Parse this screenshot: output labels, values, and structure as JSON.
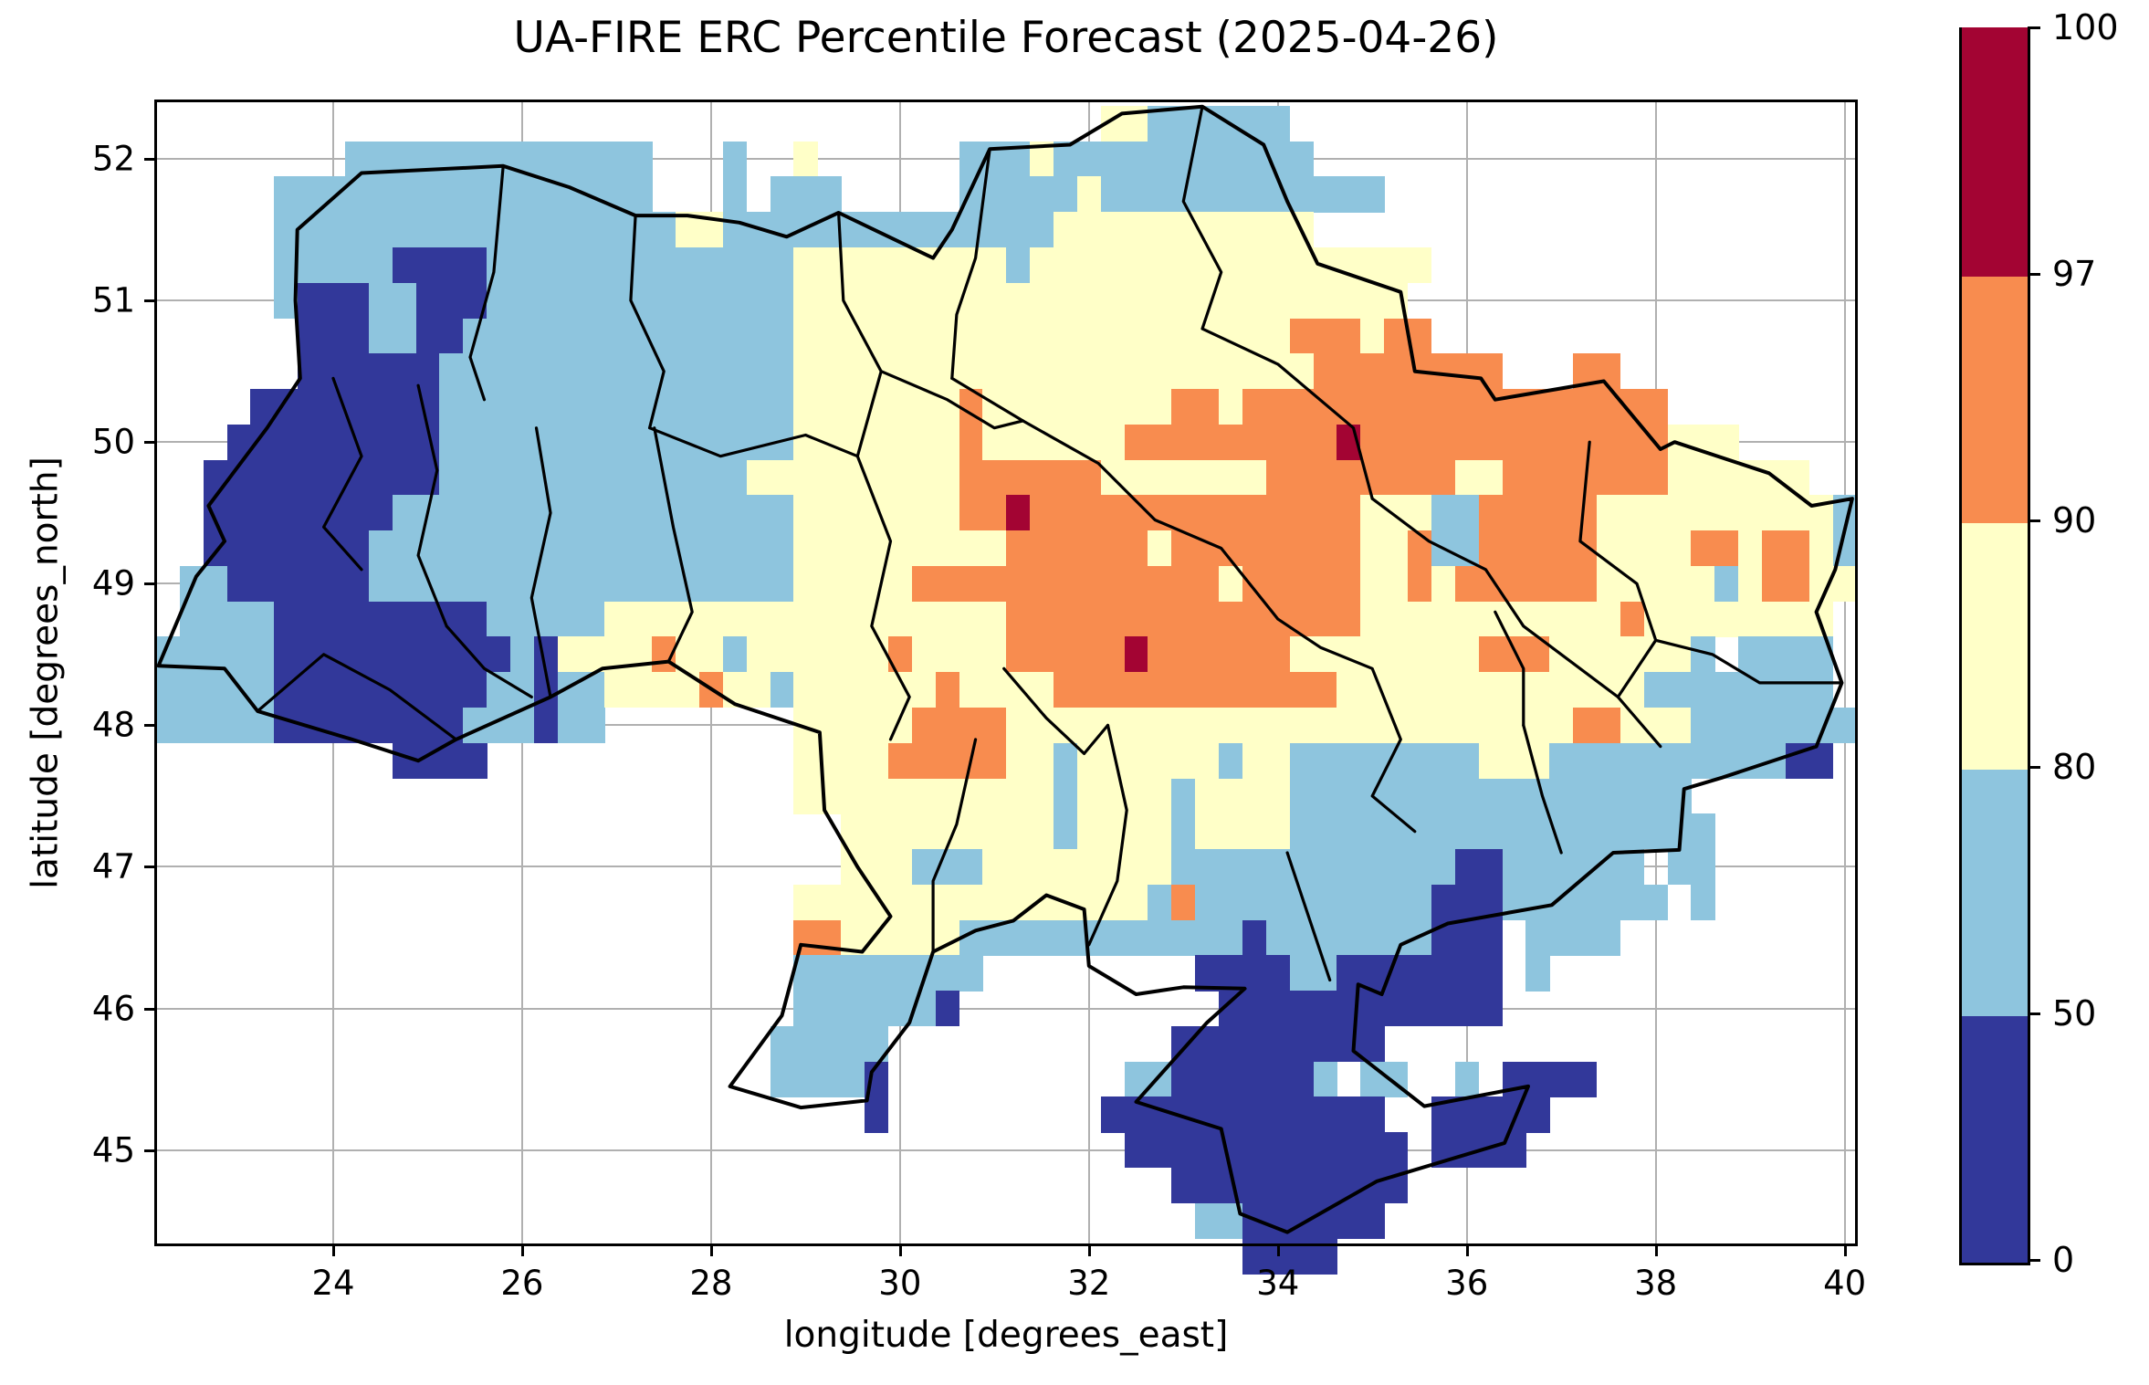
{
  "figure": {
    "title": "UA-FIRE ERC Percentile Forecast (2025-04-26)",
    "xlabel": "longitude [degrees_east]",
    "ylabel": "latitude [degrees_north]"
  },
  "chart_data": {
    "type": "heatmap",
    "title": "UA-FIRE ERC Percentile Forecast (2025-04-26)",
    "xlabel": "longitude [degrees_east]",
    "ylabel": "latitude [degrees_north]",
    "xlim": [
      22.135,
      40.11
    ],
    "ylim": [
      44.34,
      52.4
    ],
    "x_ticks": [
      24,
      26,
      28,
      30,
      32,
      34,
      36,
      38,
      40
    ],
    "y_ticks": [
      45,
      46,
      47,
      48,
      49,
      50,
      51,
      52
    ],
    "grid_on": true,
    "grid_color": "#b0b0b0",
    "colorbar": {
      "levels": [
        0,
        50,
        80,
        90,
        97,
        100
      ],
      "tick_labels": [
        "0",
        "50",
        "80",
        "90",
        "97",
        "100"
      ],
      "colors": [
        "#32389a",
        "#8ec5de",
        "#ffffc8",
        "#f88c4f",
        "#a30433"
      ],
      "meaning": [
        "0-50",
        "50-80",
        "80-90",
        "90-97",
        "97-100"
      ]
    },
    "value_classes": {
      "1": "0-50",
      "2": "50-80",
      "3": "80-90",
      "4": "90-97",
      "5": "97-100"
    },
    "cell_deg": 0.25,
    "grid_origin_lon": 22.125,
    "grid_origin_lat": 52.375,
    "grid_rows": [
      "........................................33222222........................",
      "........2222222222222...2..3......222322222222222.......................",
      ".....2222222222222222...2.222.....222223222222222222....................",
      ".....22222222222222222332222222222222233333333333.......................",
      ".....2222211112222222222222333333333233333333333333333..................",
      ".....211122111222222222222233333333333333333333333333...................",
      "......111221122222222222222333333333333333333333444344..................",
      "......111111222222222222222333333333333333333333344444444...44..........",
      "....111111112222222222222223333333433333333443444444444444444444........",
      "...1111111112222222222222223333333433333344444444454444444444444333.....",
      "..11111111112222222222222333333333444444333333344444444334444444333333..",
      "..1111111122222222222222222333333344544444444444444333224444433333333332",
      "..1111111222222222222222222333333333444444344444444334224444433334434432",
      ".22111111222222222222222222333334444444444444344444334344444433333234433",
      ".2222111111111222223333333333333333344444444444444433333333333433333333.2",
      "222221111111111213333433233333343333444445444444333333334443333332 2222",
      "22222111111111221223333433233333343333444444444444333333333333322222222.",
      "2222211111111222122........333334444333333333333333333333333443332222222.",
      "..........1111.............33334444433233333323322222222333222222222211.",
      "...........................33333333333233332333322222222222222222.......",
      ".............................3333333332333323333222222222222222222......",
      ".............................3332223333333322222222222211222222 22......",
      "...........................3333333333333332422222222221112222222 2......",
      "...........................443333322222222222212222222111 2222..........",
      "...........................22222222.........1111221111111 2..............",
      "...........................2222221...........111111111111...............",
      "..........................22222............111111111....................",
      "..........................22221..........221111112 22..2 1111.............",
      "..............................1.........111111111111..11111.............",
      ".........................................111111111111.1111..............",
      "...........................................1111111111...................",
      "............................................22111111....................",
      "..............................................1111......................"
    ],
    "outline": [
      [
        22.85,
        49.3
      ],
      [
        22.68,
        49.55
      ],
      [
        23.3,
        50.1
      ],
      [
        23.65,
        50.45
      ],
      [
        23.6,
        51.0
      ],
      [
        23.62,
        51.5
      ],
      [
        24.3,
        51.9
      ],
      [
        25.8,
        51.95
      ],
      [
        26.5,
        51.8
      ],
      [
        27.2,
        51.6
      ],
      [
        27.75,
        51.6
      ],
      [
        28.3,
        51.55
      ],
      [
        28.8,
        51.45
      ],
      [
        29.35,
        51.62
      ],
      [
        30.35,
        51.3
      ],
      [
        30.55,
        51.5
      ],
      [
        30.95,
        52.07
      ],
      [
        31.8,
        52.1
      ],
      [
        32.35,
        52.32
      ],
      [
        33.2,
        52.37
      ],
      [
        33.85,
        52.1
      ],
      [
        34.1,
        51.7
      ],
      [
        34.42,
        51.26
      ],
      [
        35.3,
        51.06
      ],
      [
        35.45,
        50.5
      ],
      [
        36.15,
        50.45
      ],
      [
        36.3,
        50.3
      ],
      [
        37.45,
        50.43
      ],
      [
        38.05,
        49.95
      ],
      [
        38.2,
        50.0
      ],
      [
        39.2,
        49.78
      ],
      [
        39.65,
        49.55
      ],
      [
        40.08,
        49.6
      ],
      [
        39.9,
        49.1
      ],
      [
        39.7,
        48.8
      ],
      [
        39.97,
        48.3
      ],
      [
        39.7,
        47.85
      ],
      [
        38.7,
        47.63
      ],
      [
        38.3,
        47.55
      ],
      [
        38.25,
        47.12
      ],
      [
        37.55,
        47.1
      ],
      [
        36.9,
        46.73
      ],
      [
        35.8,
        46.6
      ],
      [
        35.3,
        46.45
      ],
      [
        35.1,
        46.1
      ],
      [
        34.85,
        46.17
      ],
      [
        34.8,
        45.7
      ],
      [
        35.55,
        45.31
      ],
      [
        36.65,
        45.45
      ],
      [
        36.4,
        45.05
      ],
      [
        35.05,
        44.78
      ],
      [
        34.1,
        44.42
      ],
      [
        33.6,
        44.55
      ],
      [
        33.4,
        45.15
      ],
      [
        32.5,
        45.34
      ],
      [
        33.25,
        45.9
      ],
      [
        33.65,
        46.14
      ],
      [
        33.0,
        46.15
      ],
      [
        32.5,
        46.1
      ],
      [
        32.0,
        46.3
      ],
      [
        31.95,
        46.7
      ],
      [
        31.55,
        46.8
      ],
      [
        31.2,
        46.62
      ],
      [
        30.8,
        46.55
      ],
      [
        30.35,
        46.4
      ],
      [
        30.1,
        45.9
      ],
      [
        29.7,
        45.55
      ],
      [
        29.65,
        45.35
      ],
      [
        28.95,
        45.3
      ],
      [
        28.2,
        45.45
      ],
      [
        28.75,
        45.95
      ],
      [
        28.95,
        46.45
      ],
      [
        29.6,
        46.4
      ],
      [
        29.9,
        46.65
      ],
      [
        29.55,
        47.0
      ],
      [
        29.2,
        47.4
      ],
      [
        29.15,
        47.95
      ],
      [
        28.25,
        48.15
      ],
      [
        27.55,
        48.45
      ],
      [
        26.85,
        48.4
      ],
      [
        26.3,
        48.2
      ],
      [
        25.3,
        47.9
      ],
      [
        24.9,
        47.75
      ],
      [
        24.2,
        47.9
      ],
      [
        23.2,
        48.1
      ],
      [
        22.85,
        48.4
      ],
      [
        22.15,
        48.42
      ],
      [
        22.55,
        49.05
      ],
      [
        22.85,
        49.3
      ]
    ],
    "admin_borders": [
      [
        [
          25.8,
          51.95
        ],
        [
          25.7,
          51.2
        ],
        [
          25.45,
          50.6
        ],
        [
          25.6,
          50.3
        ]
      ],
      [
        [
          27.2,
          51.6
        ],
        [
          27.15,
          51.0
        ],
        [
          27.5,
          50.5
        ],
        [
          27.35,
          50.1
        ]
      ],
      [
        [
          29.35,
          51.62
        ],
        [
          29.4,
          51.0
        ],
        [
          29.8,
          50.5
        ],
        [
          29.55,
          49.9
        ]
      ],
      [
        [
          30.95,
          52.07
        ],
        [
          30.8,
          51.3
        ],
        [
          30.6,
          50.9
        ],
        [
          30.55,
          50.45
        ]
      ],
      [
        [
          33.2,
          52.37
        ],
        [
          33.0,
          51.7
        ],
        [
          33.4,
          51.2
        ],
        [
          33.2,
          50.8
        ],
        [
          34.0,
          50.55
        ],
        [
          34.8,
          50.1
        ],
        [
          35.0,
          49.6
        ]
      ],
      [
        [
          24.0,
          50.45
        ],
        [
          24.3,
          49.9
        ],
        [
          23.9,
          49.4
        ],
        [
          24.3,
          49.1
        ]
      ],
      [
        [
          26.15,
          50.1
        ],
        [
          26.3,
          49.5
        ],
        [
          26.1,
          48.9
        ],
        [
          26.3,
          48.2
        ]
      ],
      [
        [
          27.4,
          50.1
        ],
        [
          27.6,
          49.4
        ],
        [
          27.8,
          48.8
        ],
        [
          27.55,
          48.45
        ]
      ],
      [
        [
          29.55,
          49.9
        ],
        [
          29.9,
          49.3
        ],
        [
          29.7,
          48.7
        ],
        [
          30.1,
          48.2
        ],
        [
          29.9,
          47.9
        ]
      ],
      [
        [
          30.55,
          50.45
        ],
        [
          31.3,
          50.15
        ],
        [
          32.1,
          49.85
        ],
        [
          32.7,
          49.45
        ],
        [
          33.4,
          49.25
        ],
        [
          34.0,
          48.75
        ],
        [
          34.45,
          48.55
        ],
        [
          35.0,
          48.4
        ],
        [
          35.3,
          47.9
        ],
        [
          35.0,
          47.5
        ],
        [
          35.45,
          47.25
        ]
      ],
      [
        [
          32.2,
          48.0
        ],
        [
          32.4,
          47.4
        ],
        [
          32.3,
          46.9
        ],
        [
          32.0,
          46.45
        ]
      ],
      [
        [
          30.8,
          47.9
        ],
        [
          30.6,
          47.3
        ],
        [
          30.35,
          46.9
        ],
        [
          30.35,
          46.4
        ]
      ],
      [
        [
          31.1,
          48.4
        ],
        [
          31.55,
          48.05
        ],
        [
          31.95,
          47.8
        ],
        [
          32.2,
          48.0
        ]
      ],
      [
        [
          37.3,
          50.0
        ],
        [
          37.2,
          49.3
        ],
        [
          37.8,
          49.0
        ],
        [
          38.0,
          48.6
        ],
        [
          37.6,
          48.2
        ],
        [
          38.05,
          47.85
        ]
      ],
      [
        [
          36.6,
          48.0
        ],
        [
          36.8,
          47.5
        ],
        [
          37.0,
          47.1
        ]
      ],
      [
        [
          34.1,
          47.1
        ],
        [
          34.3,
          46.7
        ],
        [
          34.55,
          46.2
        ]
      ],
      [
        [
          23.2,
          48.1
        ],
        [
          23.9,
          48.5
        ],
        [
          24.6,
          48.25
        ],
        [
          25.3,
          47.9
        ]
      ],
      [
        [
          25.2,
          48.7
        ],
        [
          25.6,
          48.4
        ],
        [
          26.1,
          48.2
        ]
      ],
      [
        [
          24.9,
          50.4
        ],
        [
          25.1,
          49.8
        ],
        [
          24.9,
          49.2
        ],
        [
          25.2,
          48.7
        ]
      ],
      [
        [
          35.0,
          49.6
        ],
        [
          35.6,
          49.3
        ],
        [
          36.2,
          49.1
        ],
        [
          36.6,
          48.7
        ],
        [
          37.6,
          48.2
        ]
      ],
      [
        [
          27.35,
          50.1
        ],
        [
          28.1,
          49.9
        ],
        [
          29.0,
          50.05
        ],
        [
          29.55,
          49.9
        ]
      ],
      [
        [
          29.8,
          50.5
        ],
        [
          30.5,
          50.3
        ],
        [
          31.0,
          50.1
        ],
        [
          31.3,
          50.15
        ]
      ],
      [
        [
          38.0,
          48.6
        ],
        [
          38.6,
          48.5
        ],
        [
          39.1,
          48.3
        ],
        [
          39.97,
          48.3
        ]
      ],
      [
        [
          36.3,
          48.8
        ],
        [
          36.6,
          48.4
        ],
        [
          36.6,
          48.0
        ]
      ]
    ]
  }
}
